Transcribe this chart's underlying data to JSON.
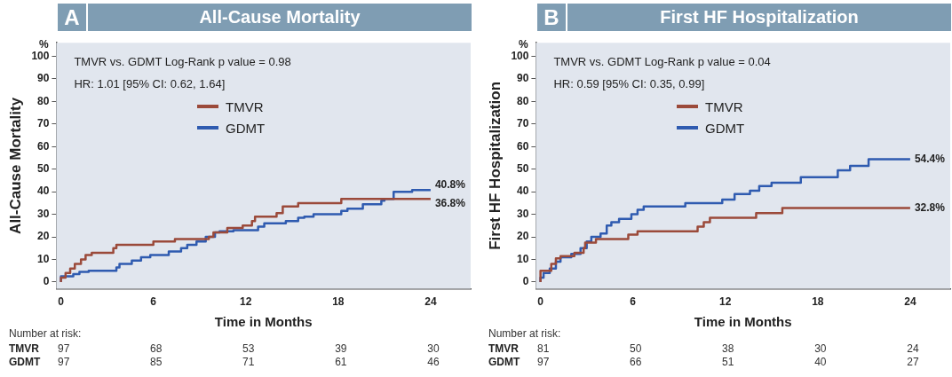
{
  "chart_data": [
    {
      "type": "step",
      "title": "All-Cause Mortality",
      "ylabel": "All-Cause Mortality",
      "xlabel": "Time in Months",
      "legend": "top",
      "xlim": [
        -0.3,
        26.6
      ],
      "xticks": [
        0,
        6,
        12,
        18,
        24
      ],
      "ylim": [
        -3,
        106
      ],
      "yticks": [
        0,
        10,
        20,
        30,
        40,
        50,
        60,
        70,
        80,
        90,
        100
      ],
      "series": [
        {
          "name": "TMVR",
          "color": "#9b4a3a",
          "x": [
            0,
            0.3,
            0.6,
            0.9,
            1.3,
            1.6,
            2.0,
            3.4,
            3.6,
            6.0,
            7.4,
            9.6,
            9.9,
            10.8,
            11.8,
            12.4,
            12.6,
            14.0,
            14.4,
            15.4,
            18.2,
            18.7,
            24
          ],
          "values": [
            0,
            2,
            4,
            6,
            8,
            10,
            12,
            13,
            15,
            16.5,
            18,
            19,
            20,
            22,
            24,
            25,
            27,
            29,
            30.5,
            33.5,
            35,
            36.8,
            36.8
          ]
        },
        {
          "name": "GDMT",
          "color": "#2f5bb0",
          "x": [
            0,
            0.8,
            1.2,
            1.8,
            3.6,
            3.8,
            4.6,
            5.2,
            5.8,
            7.0,
            7.8,
            8.2,
            8.8,
            9.4,
            10.0,
            10.3,
            11.2,
            12.8,
            13.2,
            14.6,
            15.4,
            15.8,
            16.4,
            18.2,
            18.6,
            19.6,
            20.8,
            21.0,
            21.6,
            22.8,
            24
          ],
          "values": [
            0,
            2.5,
            3.5,
            4.5,
            5,
            6.5,
            8,
            9.5,
            11,
            12,
            13.5,
            15,
            16.5,
            18,
            20,
            22,
            22.5,
            23,
            24.5,
            26,
            27,
            28.5,
            29,
            30,
            31.5,
            32.5,
            34.5,
            36,
            36.8,
            40,
            40.8
          ]
        }
      ],
      "annotations": [
        "A",
        "%",
        "TMVR vs. GDMT Log-Rank p value = 0.98",
        "HR: 1.01 [95% CI: 0.62, 1.64]",
        "Number at risk:",
        "TMVR",
        "97",
        "68",
        "53",
        "39",
        "30",
        "GDMT",
        "97",
        "85",
        "71",
        "61",
        "46",
        "36.8%",
        "40.8%"
      ]
    },
    {
      "type": "step",
      "title": "First HF Hospitalization",
      "ylabel": "First HF Hospitalization",
      "xlabel": "Time in Months",
      "legend": "top",
      "xlim": [
        -0.3,
        26.6
      ],
      "xticks": [
        0,
        6,
        12,
        18,
        24
      ],
      "ylim": [
        -3,
        106
      ],
      "yticks": [
        0,
        10,
        20,
        30,
        40,
        50,
        60,
        70,
        80,
        90,
        100
      ],
      "series": [
        {
          "name": "TMVR",
          "color": "#9b4a3a",
          "x": [
            0,
            0.7,
            1.0,
            1.3,
            2.2,
            2.8,
            2.9,
            3.6,
            5.7,
            6.3,
            10.2,
            10.6,
            11.0,
            14.0,
            15.7,
            18.7,
            24
          ],
          "values": [
            0,
            5,
            8,
            10.5,
            11.5,
            13,
            15,
            17.5,
            19,
            21,
            22.5,
            24.5,
            26.5,
            28.5,
            30.5,
            32.8,
            32.8
          ]
        },
        {
          "name": "GDMT",
          "color": "#2f5bb0",
          "x": [
            0,
            0.2,
            0.6,
            1.0,
            1.3,
            2.0,
            2.6,
            3.0,
            3.3,
            3.9,
            4.3,
            4.6,
            5.1,
            5.9,
            6.3,
            6.7,
            9.4,
            11.8,
            12.6,
            13.6,
            14.2,
            15.0,
            16.9,
            19.3,
            20.1,
            21.3,
            24
          ],
          "values": [
            0,
            2,
            4,
            6,
            9,
            11,
            12.5,
            15,
            18,
            20,
            21.5,
            25,
            26.5,
            28,
            30,
            32,
            33.5,
            35,
            36.5,
            39,
            40.5,
            42.5,
            44,
            46.5,
            49.5,
            51.5,
            54.4
          ]
        }
      ],
      "annotations": [
        "B",
        "%",
        "TMVR vs. GDMT Log-Rank p value = 0.04",
        "HR: 0.59 [95% CI: 0.35, 0.99]",
        "Number at risk:",
        "TMVR",
        "81",
        "50",
        "38",
        "30",
        "24",
        "GDMT",
        "97",
        "66",
        "51",
        "40",
        "27",
        "32.8%",
        "54.4%"
      ]
    }
  ]
}
